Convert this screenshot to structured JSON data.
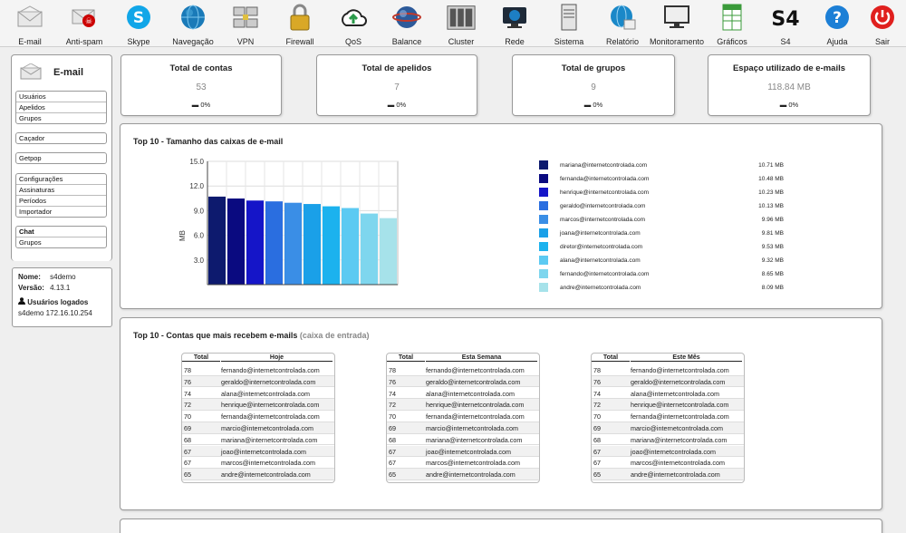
{
  "toolbar": [
    {
      "label": "E-mail",
      "icon": "envelope-icon"
    },
    {
      "label": "Anti-spam",
      "icon": "anti-spam-icon"
    },
    {
      "label": "Skype",
      "icon": "skype-icon"
    },
    {
      "label": "Navegação",
      "icon": "globe-icon"
    },
    {
      "label": "VPN",
      "icon": "vpn-network-icon"
    },
    {
      "label": "Firewall",
      "icon": "padlock-icon"
    },
    {
      "label": "QoS",
      "icon": "cloud-upload-icon"
    },
    {
      "label": "Balance",
      "icon": "balance-globe-icon"
    },
    {
      "label": "Cluster",
      "icon": "server-cluster-icon"
    },
    {
      "label": "Rede",
      "icon": "network-monitor-icon"
    },
    {
      "label": "Sistema",
      "icon": "server-tower-icon"
    },
    {
      "label": "Relatório",
      "icon": "report-globe-icon"
    },
    {
      "label": "Monitoramento",
      "icon": "monitor-icon"
    },
    {
      "label": "Gráficos",
      "icon": "spreadsheet-icon"
    },
    {
      "label": "S4",
      "icon": "s4-logo-icon"
    },
    {
      "label": "Ajuda",
      "icon": "help-icon"
    },
    {
      "label": "Sair",
      "icon": "power-icon"
    }
  ],
  "sidebar": {
    "title": "E-mail",
    "groups": [
      [
        "Usuários",
        "Apelidos",
        "Grupos"
      ],
      [
        "Caçador"
      ],
      [
        "Getpop"
      ],
      [
        "Configurações",
        "Assinaturas",
        "Períodos",
        "Importador"
      ],
      [
        "Chat",
        "Grupos"
      ]
    ],
    "info": {
      "name_label": "Nome:",
      "name_value": "s4demo",
      "version_label": "Versão:",
      "version_value": "4.13.1",
      "logged_label": "Usuários logados",
      "logged_entry": "s4demo 172.16.10.254"
    }
  },
  "stats": [
    {
      "title": "Total de contas",
      "value": "53",
      "pct": "0%"
    },
    {
      "title": "Total de apelidos",
      "value": "7",
      "pct": "0%"
    },
    {
      "title": "Total de grupos",
      "value": "9",
      "pct": "0%"
    },
    {
      "title": "Espaço utilizado de e-mails",
      "value": "118.84 MB",
      "pct": "0%"
    }
  ],
  "chart_panel": {
    "title": "Top 10 - Tamanho das caixas de e-mail"
  },
  "chart_data": {
    "type": "bar",
    "title": "Top 10 - Tamanho das caixas de e-mail",
    "xlabel": "",
    "ylabel": "MB",
    "ylim": [
      0,
      15
    ],
    "yticks": [
      "15.0",
      "12.0",
      "9.0",
      "6.0",
      "3.0"
    ],
    "grid": true,
    "legend_position": "right",
    "categories": [
      "mariana@internetcontrolada.com",
      "fernanda@internetcontrolada.com",
      "henrique@internetcontrolada.com",
      "geraldo@internetcontrolada.com",
      "marcos@internetcontrolada.com",
      "joana@internetcontrolada.com",
      "diretor@internetcontrolada.com",
      "alana@internetcontrolada.com",
      "fernando@internetcontrolada.com",
      "andre@internetcontrolada.com"
    ],
    "values": [
      10.71,
      10.48,
      10.23,
      10.13,
      9.96,
      9.81,
      9.53,
      9.32,
      8.65,
      8.09
    ],
    "value_labels": [
      "10.71 MB",
      "10.48 MB",
      "10.23 MB",
      "10.13 MB",
      "9.96 MB",
      "9.81 MB",
      "9.53 MB",
      "9.32 MB",
      "8.65 MB",
      "8.09 MB"
    ],
    "colors": [
      "#0d1a6e",
      "#0a0a80",
      "#1515c8",
      "#2a6ee0",
      "#3a8ee6",
      "#1aa0e8",
      "#1cb2ee",
      "#5ccaf2",
      "#7ed6ee",
      "#a6e2ea"
    ]
  },
  "top_panel": {
    "title": "Top 10 - Contas que mais recebem e-mails",
    "subtitle": "(caixa de entrada)",
    "tables": [
      {
        "col_total": "Total",
        "col_period": "Hoje",
        "rows": [
          [
            "78",
            "fernando@internetcontrolada.com"
          ],
          [
            "76",
            "geraldo@internetcontrolada.com"
          ],
          [
            "74",
            "alana@internetcontrolada.com"
          ],
          [
            "72",
            "henrique@internetcontrolada.com"
          ],
          [
            "70",
            "fernanda@internetcontrolada.com"
          ],
          [
            "69",
            "marcio@internetcontrolada.com"
          ],
          [
            "68",
            "mariana@internetcontrolada.com"
          ],
          [
            "67",
            "joao@internetcontrolada.com"
          ],
          [
            "67",
            "marcos@internetcontrolada.com"
          ],
          [
            "65",
            "andre@internetcontrolada.com"
          ]
        ]
      },
      {
        "col_total": "Total",
        "col_period": "Esta Semana",
        "rows": [
          [
            "78",
            "fernando@internetcontrolada.com"
          ],
          [
            "76",
            "geraldo@internetcontrolada.com"
          ],
          [
            "74",
            "alana@internetcontrolada.com"
          ],
          [
            "72",
            "henrique@internetcontrolada.com"
          ],
          [
            "70",
            "fernanda@internetcontrolada.com"
          ],
          [
            "69",
            "marcio@internetcontrolada.com"
          ],
          [
            "68",
            "mariana@internetcontrolada.com"
          ],
          [
            "67",
            "joao@internetcontrolada.com"
          ],
          [
            "67",
            "marcos@internetcontrolada.com"
          ],
          [
            "65",
            "andre@internetcontrolada.com"
          ]
        ]
      },
      {
        "col_total": "Total",
        "col_period": "Este Mês",
        "rows": [
          [
            "78",
            "fernando@internetcontrolada.com"
          ],
          [
            "76",
            "geraldo@internetcontrolada.com"
          ],
          [
            "74",
            "alana@internetcontrolada.com"
          ],
          [
            "72",
            "henrique@internetcontrolada.com"
          ],
          [
            "70",
            "fernanda@internetcontrolada.com"
          ],
          [
            "69",
            "marcio@internetcontrolada.com"
          ],
          [
            "68",
            "mariana@internetcontrolada.com"
          ],
          [
            "67",
            "joao@internetcontrolada.com"
          ],
          [
            "67",
            "marcos@internetcontrolada.com"
          ],
          [
            "65",
            "andre@internetcontrolada.com"
          ]
        ]
      }
    ]
  }
}
